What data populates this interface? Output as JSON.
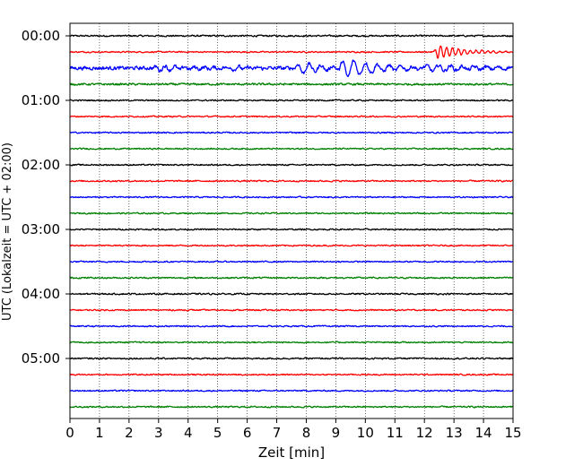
{
  "chart_data": {
    "type": "line",
    "title": "",
    "xlabel": "Zeit  [min]",
    "ylabel": "UTC (Lokalzeit = UTC + 02:00)",
    "xlim": [
      0,
      15
    ],
    "x_ticks": [
      "0",
      "1",
      "2",
      "3",
      "4",
      "5",
      "6",
      "7",
      "8",
      "9",
      "10",
      "11",
      "12",
      "13",
      "14",
      "15"
    ],
    "y_tick_labels": [
      "00:00",
      "01:00",
      "02:00",
      "03:00",
      "04:00",
      "05:00"
    ],
    "trace_interval_minutes": 15,
    "grid": "vertical dotted lines at each minute",
    "trace_colors": [
      "#000000",
      "#ff0000",
      "#0000ff",
      "#008000"
    ],
    "series": [
      {
        "start": "00:00",
        "color": "#000000",
        "amplitude": 1.2
      },
      {
        "start": "00:15",
        "color": "#ff0000",
        "amplitude": 1.0,
        "events": [
          {
            "at_min": 12.3,
            "peak": 9,
            "decay_min": 0.9,
            "freq": 5
          }
        ]
      },
      {
        "start": "00:30",
        "color": "#0000ff",
        "amplitude": 2.6,
        "events": [
          {
            "at_min": 2.8,
            "peak": 3.5,
            "decay_min": 1.5,
            "freq": 3
          },
          {
            "at_min": 5.3,
            "peak": 3.5,
            "decay_min": 1.0,
            "freq": 3
          },
          {
            "at_min": 7.6,
            "peak": 7,
            "decay_min": 1.2,
            "freq": 2.5
          },
          {
            "at_min": 9.1,
            "peak": 12,
            "decay_min": 1.3,
            "freq": 2.5
          },
          {
            "at_min": 12.0,
            "peak": 4,
            "decay_min": 2.0,
            "freq": 2.5
          }
        ]
      },
      {
        "start": "00:45",
        "color": "#008000",
        "amplitude": 1.5
      },
      {
        "start": "01:00",
        "color": "#000000",
        "amplitude": 1.0
      },
      {
        "start": "01:15",
        "color": "#ff0000",
        "amplitude": 1.0
      },
      {
        "start": "01:30",
        "color": "#0000ff",
        "amplitude": 1.0
      },
      {
        "start": "01:45",
        "color": "#008000",
        "amplitude": 1.0
      },
      {
        "start": "02:00",
        "color": "#000000",
        "amplitude": 1.0
      },
      {
        "start": "02:15",
        "color": "#ff0000",
        "amplitude": 1.1
      },
      {
        "start": "02:30",
        "color": "#0000ff",
        "amplitude": 1.0
      },
      {
        "start": "02:45",
        "color": "#008000",
        "amplitude": 1.0
      },
      {
        "start": "03:00",
        "color": "#000000",
        "amplitude": 1.0
      },
      {
        "start": "03:15",
        "color": "#ff0000",
        "amplitude": 1.0
      },
      {
        "start": "03:30",
        "color": "#0000ff",
        "amplitude": 1.0
      },
      {
        "start": "03:45",
        "color": "#008000",
        "amplitude": 1.1
      },
      {
        "start": "04:00",
        "color": "#000000",
        "amplitude": 1.1
      },
      {
        "start": "04:15",
        "color": "#ff0000",
        "amplitude": 1.0
      },
      {
        "start": "04:30",
        "color": "#0000ff",
        "amplitude": 1.0
      },
      {
        "start": "04:45",
        "color": "#008000",
        "amplitude": 1.0
      },
      {
        "start": "05:00",
        "color": "#000000",
        "amplitude": 1.1
      },
      {
        "start": "05:15",
        "color": "#ff0000",
        "amplitude": 1.0
      },
      {
        "start": "05:30",
        "color": "#0000ff",
        "amplitude": 1.0
      },
      {
        "start": "05:45",
        "color": "#008000",
        "amplitude": 1.1
      }
    ]
  }
}
